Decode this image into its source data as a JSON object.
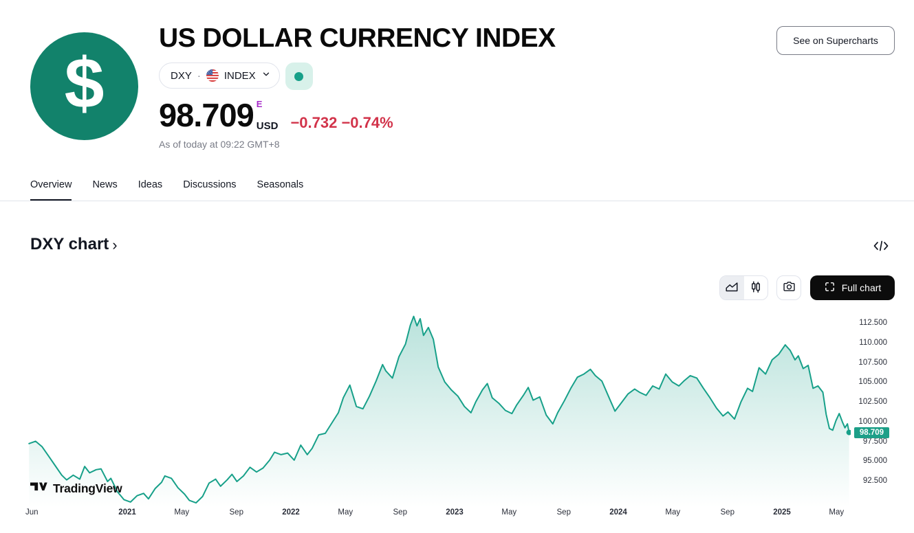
{
  "header": {
    "title": "US DOLLAR CURRENCY INDEX",
    "logo_symbol": "$",
    "symbol": "DXY",
    "separator": "·",
    "exchange": "INDEX",
    "see_on_supercharts": "See on Supercharts"
  },
  "quote": {
    "price": "98.709",
    "market_flag": "E",
    "currency": "USD",
    "change": "−0.732 −0.74%",
    "as_of": "As of today at 09:22 GMT+8"
  },
  "tabs": {
    "items": [
      {
        "label": "Overview",
        "active": true
      },
      {
        "label": "News",
        "active": false
      },
      {
        "label": "Ideas",
        "active": false
      },
      {
        "label": "Discussions",
        "active": false
      },
      {
        "label": "Seasonals",
        "active": false
      }
    ]
  },
  "section": {
    "title": "DXY chart",
    "chevron": "›"
  },
  "toolbar": {
    "full_chart_label": "Full chart"
  },
  "watermark": {
    "text": "TradingView"
  },
  "colors": {
    "accent_teal": "#17a089",
    "logo_teal": "#12826b",
    "status_bg": "#d8f1ea",
    "price_tag_bg": "#1d9f88",
    "change_red": "#d2334a",
    "flag_purple": "#a62ac8",
    "muted_gray": "#787b86",
    "border_gray": "#e0e3eb"
  },
  "chart_data": {
    "type": "area",
    "title": "DXY chart",
    "x_unit": "decimal_year",
    "x_range": [
      2020.4,
      2025.41
    ],
    "grid": false,
    "legend": false,
    "last_price": 98.709,
    "last_price_label": "98.709",
    "y_ticks": [
      {
        "label": "112.500",
        "value": 112.5
      },
      {
        "label": "110.000",
        "value": 110.0
      },
      {
        "label": "107.500",
        "value": 107.5
      },
      {
        "label": "105.000",
        "value": 105.0
      },
      {
        "label": "102.500",
        "value": 102.5
      },
      {
        "label": "100.000",
        "value": 100.0
      },
      {
        "label": "97.500",
        "value": 97.5
      },
      {
        "label": "95.000",
        "value": 95.0
      },
      {
        "label": "92.500",
        "value": 92.5
      }
    ],
    "x_ticks": [
      {
        "label": "Jun",
        "t": 2020.417,
        "bold": false
      },
      {
        "label": "2021",
        "t": 2021.0,
        "bold": true
      },
      {
        "label": "May",
        "t": 2021.333,
        "bold": false
      },
      {
        "label": "Sep",
        "t": 2021.667,
        "bold": false
      },
      {
        "label": "2022",
        "t": 2022.0,
        "bold": true
      },
      {
        "label": "May",
        "t": 2022.333,
        "bold": false
      },
      {
        "label": "Sep",
        "t": 2022.667,
        "bold": false
      },
      {
        "label": "2023",
        "t": 2023.0,
        "bold": true
      },
      {
        "label": "May",
        "t": 2023.333,
        "bold": false
      },
      {
        "label": "Sep",
        "t": 2023.667,
        "bold": false
      },
      {
        "label": "2024",
        "t": 2024.0,
        "bold": true
      },
      {
        "label": "May",
        "t": 2024.333,
        "bold": false
      },
      {
        "label": "Sep",
        "t": 2024.667,
        "bold": false
      },
      {
        "label": "2025",
        "t": 2025.0,
        "bold": true
      },
      {
        "label": "May",
        "t": 2025.333,
        "bold": false
      }
    ],
    "series": [
      {
        "name": "DXY",
        "points": [
          [
            2020.4,
            97.3
          ],
          [
            2020.44,
            97.6
          ],
          [
            2020.48,
            96.9
          ],
          [
            2020.52,
            95.7
          ],
          [
            2020.56,
            94.5
          ],
          [
            2020.6,
            93.3
          ],
          [
            2020.63,
            92.7
          ],
          [
            2020.67,
            93.3
          ],
          [
            2020.71,
            92.8
          ],
          [
            2020.74,
            94.4
          ],
          [
            2020.77,
            93.6
          ],
          [
            2020.81,
            94.0
          ],
          [
            2020.84,
            94.1
          ],
          [
            2020.88,
            92.5
          ],
          [
            2020.9,
            92.9
          ],
          [
            2020.94,
            91.2
          ],
          [
            2020.98,
            90.2
          ],
          [
            2021.02,
            89.9
          ],
          [
            2021.06,
            90.7
          ],
          [
            2021.1,
            91.0
          ],
          [
            2021.13,
            90.3
          ],
          [
            2021.17,
            91.6
          ],
          [
            2021.21,
            92.4
          ],
          [
            2021.23,
            93.2
          ],
          [
            2021.27,
            92.9
          ],
          [
            2021.31,
            91.7
          ],
          [
            2021.35,
            90.9
          ],
          [
            2021.38,
            90.1
          ],
          [
            2021.42,
            89.8
          ],
          [
            2021.46,
            90.6
          ],
          [
            2021.5,
            92.3
          ],
          [
            2021.54,
            92.8
          ],
          [
            2021.57,
            91.9
          ],
          [
            2021.61,
            92.7
          ],
          [
            2021.64,
            93.4
          ],
          [
            2021.67,
            92.5
          ],
          [
            2021.71,
            93.2
          ],
          [
            2021.75,
            94.3
          ],
          [
            2021.79,
            93.7
          ],
          [
            2021.83,
            94.2
          ],
          [
            2021.87,
            95.2
          ],
          [
            2021.9,
            96.2
          ],
          [
            2021.94,
            95.9
          ],
          [
            2021.98,
            96.1
          ],
          [
            2022.02,
            95.2
          ],
          [
            2022.06,
            97.1
          ],
          [
            2022.1,
            95.9
          ],
          [
            2022.13,
            96.7
          ],
          [
            2022.17,
            98.4
          ],
          [
            2022.21,
            98.6
          ],
          [
            2022.25,
            99.9
          ],
          [
            2022.29,
            101.2
          ],
          [
            2022.32,
            103.1
          ],
          [
            2022.36,
            104.7
          ],
          [
            2022.4,
            102.0
          ],
          [
            2022.44,
            101.7
          ],
          [
            2022.48,
            103.3
          ],
          [
            2022.52,
            105.2
          ],
          [
            2022.56,
            107.3
          ],
          [
            2022.58,
            106.5
          ],
          [
            2022.62,
            105.6
          ],
          [
            2022.66,
            108.3
          ],
          [
            2022.7,
            109.9
          ],
          [
            2022.73,
            112.3
          ],
          [
            2022.75,
            113.4
          ],
          [
            2022.77,
            112.2
          ],
          [
            2022.79,
            113.1
          ],
          [
            2022.81,
            111.0
          ],
          [
            2022.84,
            112.0
          ],
          [
            2022.87,
            110.5
          ],
          [
            2022.9,
            107.0
          ],
          [
            2022.94,
            105.1
          ],
          [
            2022.98,
            104.1
          ],
          [
            2023.02,
            103.3
          ],
          [
            2023.06,
            102.0
          ],
          [
            2023.1,
            101.2
          ],
          [
            2023.13,
            102.6
          ],
          [
            2023.17,
            104.1
          ],
          [
            2023.2,
            104.9
          ],
          [
            2023.23,
            103.1
          ],
          [
            2023.27,
            102.4
          ],
          [
            2023.31,
            101.5
          ],
          [
            2023.35,
            101.1
          ],
          [
            2023.38,
            102.2
          ],
          [
            2023.42,
            103.4
          ],
          [
            2023.45,
            104.4
          ],
          [
            2023.48,
            102.8
          ],
          [
            2023.52,
            103.2
          ],
          [
            2023.56,
            100.9
          ],
          [
            2023.6,
            99.8
          ],
          [
            2023.63,
            101.2
          ],
          [
            2023.67,
            102.7
          ],
          [
            2023.71,
            104.3
          ],
          [
            2023.75,
            105.7
          ],
          [
            2023.79,
            106.1
          ],
          [
            2023.83,
            106.7
          ],
          [
            2023.86,
            105.9
          ],
          [
            2023.9,
            105.2
          ],
          [
            2023.94,
            103.3
          ],
          [
            2023.98,
            101.4
          ],
          [
            2024.02,
            102.5
          ],
          [
            2024.06,
            103.6
          ],
          [
            2024.1,
            104.2
          ],
          [
            2024.13,
            103.8
          ],
          [
            2024.17,
            103.4
          ],
          [
            2024.21,
            104.6
          ],
          [
            2024.25,
            104.2
          ],
          [
            2024.29,
            106.1
          ],
          [
            2024.33,
            105.1
          ],
          [
            2024.37,
            104.6
          ],
          [
            2024.4,
            105.2
          ],
          [
            2024.44,
            105.9
          ],
          [
            2024.48,
            105.6
          ],
          [
            2024.52,
            104.3
          ],
          [
            2024.56,
            103.1
          ],
          [
            2024.6,
            101.8
          ],
          [
            2024.64,
            100.8
          ],
          [
            2024.67,
            101.3
          ],
          [
            2024.71,
            100.4
          ],
          [
            2024.75,
            102.6
          ],
          [
            2024.79,
            104.3
          ],
          [
            2024.82,
            103.9
          ],
          [
            2024.86,
            106.9
          ],
          [
            2024.9,
            106.1
          ],
          [
            2024.94,
            107.9
          ],
          [
            2024.98,
            108.6
          ],
          [
            2025.02,
            109.8
          ],
          [
            2025.05,
            109.1
          ],
          [
            2025.08,
            107.9
          ],
          [
            2025.1,
            108.4
          ],
          [
            2025.13,
            106.8
          ],
          [
            2025.16,
            107.2
          ],
          [
            2025.19,
            104.3
          ],
          [
            2025.22,
            104.6
          ],
          [
            2025.25,
            103.8
          ],
          [
            2025.27,
            101.0
          ],
          [
            2025.29,
            99.2
          ],
          [
            2025.31,
            99.0
          ],
          [
            2025.33,
            100.2
          ],
          [
            2025.35,
            101.1
          ],
          [
            2025.37,
            100.0
          ],
          [
            2025.385,
            99.3
          ],
          [
            2025.4,
            99.8
          ],
          [
            2025.41,
            98.709
          ]
        ]
      }
    ]
  }
}
